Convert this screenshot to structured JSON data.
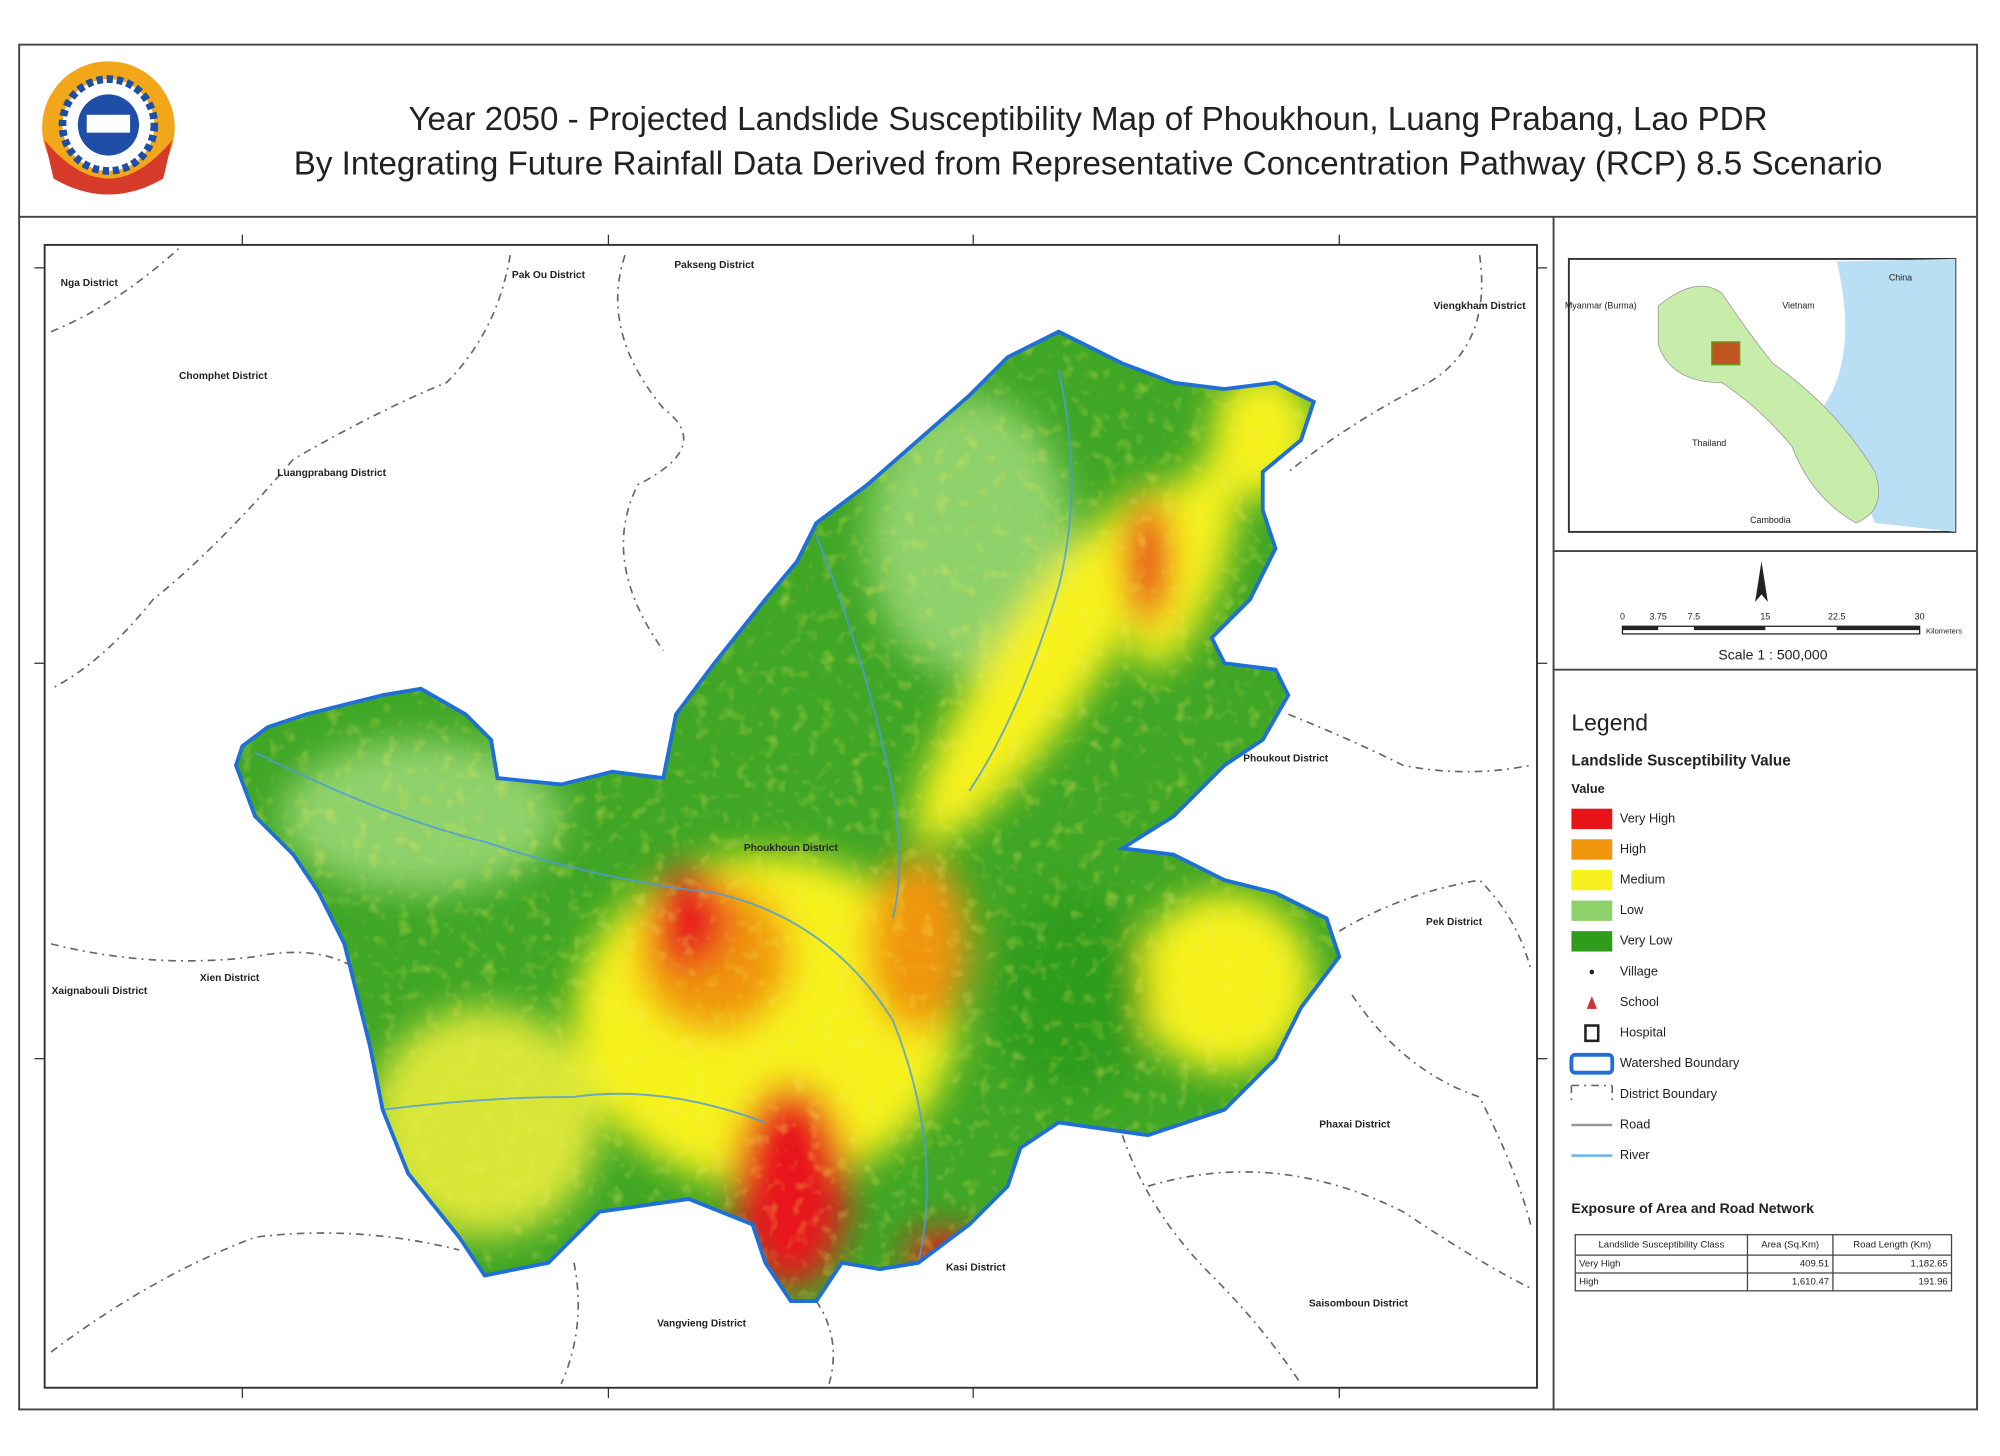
{
  "header": {
    "title_line1": "Year 2050 - Projected Landslide Susceptibility Map of Phoukhoun, Luang Prabang, Lao PDR",
    "title_line2": "By Integrating Future Rainfall Data Derived from Representative Concentration Pathway (RCP) 8.5 Scenario"
  },
  "map": {
    "districts": [
      "Nga District",
      "Pak Ou District",
      "Pakseng District",
      "Viengkham District",
      "Chomphet District",
      "Luangprabang District",
      "Phoukhoun District",
      "Phoukout District",
      "Pek District",
      "Xien District",
      "Xaignabouli District",
      "Phaxai District",
      "Vangvieng District",
      "Kasi District",
      "Saisomboun District"
    ]
  },
  "inset": {
    "labels": [
      "Myanmar (Burma)",
      "Vietnam",
      "China",
      "Thailand",
      "Cambodia"
    ]
  },
  "scale": {
    "ticks": [
      "0",
      "3.75",
      "7.5",
      "15",
      "22.5",
      "30"
    ],
    "unit": "Kilometers",
    "text": "Scale 1 : 500,000"
  },
  "legend": {
    "title": "Legend",
    "heading": "Landslide Susceptibility Value",
    "subheading": "Value",
    "items": [
      {
        "label": "Very High",
        "color": "#e8141a"
      },
      {
        "label": "High",
        "color": "#f0950c"
      },
      {
        "label": "Medium",
        "color": "#f7f21f"
      },
      {
        "label": "Low",
        "color": "#8fd16a"
      },
      {
        "label": "Very Low",
        "color": "#2f9c1c"
      }
    ],
    "symbols": [
      "Village",
      "School",
      "Hospital",
      "Watershed Boundary",
      "District Boundary",
      "Road",
      "River"
    ]
  },
  "table": {
    "title": "Exposure of Area and Road Network",
    "header": [
      "Landslide Susceptibility Class",
      "Area (Sq.Km)",
      "Road Length (Km)"
    ],
    "rows": [
      [
        "Very High",
        "409.51",
        "1,182.65"
      ],
      [
        "High",
        "1,610.47",
        "191.96"
      ]
    ]
  }
}
